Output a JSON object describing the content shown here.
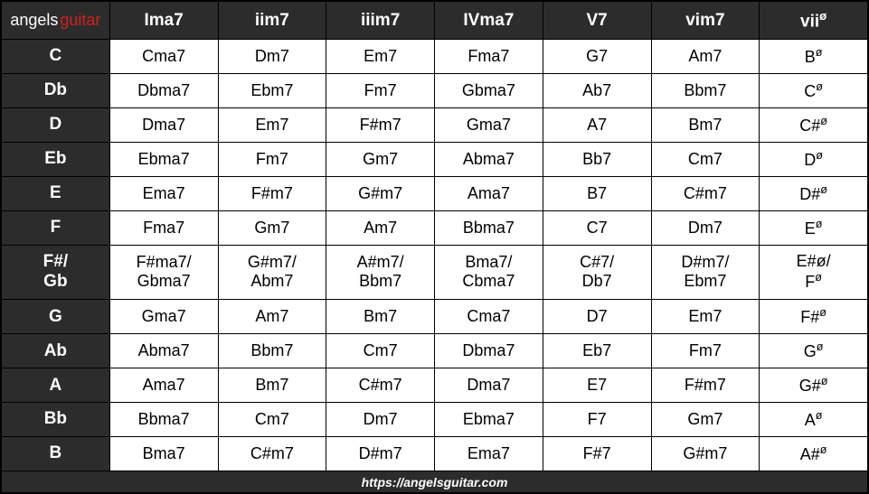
{
  "logo": {
    "part1": "angels",
    "part2": "guitar"
  },
  "colors": {
    "header_bg": "#2c2c2c",
    "header_text": "#ffffff",
    "cell_bg": "#ffffff",
    "cell_text": "#000000",
    "logo_text_1": "#ffffff",
    "logo_text_2": "#d02020",
    "border": "#000000"
  },
  "typography": {
    "header_fontsize": 19,
    "cell_fontsize": 18,
    "footer_fontsize": 14
  },
  "columns": [
    "Ima7",
    "iim7",
    "iiim7",
    "IVma7",
    "V7",
    "vim7",
    "viiø"
  ],
  "rows": [
    {
      "key": "C",
      "cells": [
        "Cma7",
        "Dm7",
        "Em7",
        "Fma7",
        "G7",
        "Am7",
        "Bø"
      ]
    },
    {
      "key": "Db",
      "cells": [
        "Dbma7",
        "Ebm7",
        "Fm7",
        "Gbma7",
        "Ab7",
        "Bbm7",
        "Cø"
      ]
    },
    {
      "key": "D",
      "cells": [
        "Dma7",
        "Em7",
        "F#m7",
        "Gma7",
        "A7",
        "Bm7",
        "C#ø"
      ]
    },
    {
      "key": "Eb",
      "cells": [
        "Ebma7",
        "Fm7",
        "Gm7",
        "Abma7",
        "Bb7",
        "Cm7",
        "Dø"
      ]
    },
    {
      "key": "E",
      "cells": [
        "Ema7",
        "F#m7",
        "G#m7",
        "Ama7",
        "B7",
        "C#m7",
        "D#ø"
      ]
    },
    {
      "key": "F",
      "cells": [
        "Fma7",
        "Gm7",
        "Am7",
        "Bbma7",
        "C7",
        "Dm7",
        "Eø"
      ]
    },
    {
      "key": "F#/\nGb",
      "cells": [
        "F#ma7/\nGbma7",
        "G#m7/\nAbm7",
        "A#m7/\nBbm7",
        "Bma7/\nCbma7",
        "C#7/\nDb7",
        "D#m7/\nEbm7",
        "E#ø/\nFø"
      ],
      "double": true
    },
    {
      "key": "G",
      "cells": [
        "Gma7",
        "Am7",
        "Bm7",
        "Cma7",
        "D7",
        "Em7",
        "F#ø"
      ]
    },
    {
      "key": "Ab",
      "cells": [
        "Abma7",
        "Bbm7",
        "Cm7",
        "Dbma7",
        "Eb7",
        "Fm7",
        "Gø"
      ]
    },
    {
      "key": "A",
      "cells": [
        "Ama7",
        "Bm7",
        "C#m7",
        "Dma7",
        "E7",
        "F#m7",
        "G#ø"
      ]
    },
    {
      "key": "Bb",
      "cells": [
        "Bbma7",
        "Cm7",
        "Dm7",
        "Ebma7",
        "F7",
        "Gm7",
        "Aø"
      ]
    },
    {
      "key": "B",
      "cells": [
        "Bma7",
        "C#m7",
        "D#m7",
        "Ema7",
        "F#7",
        "G#m7",
        "A#ø"
      ]
    }
  ],
  "footer": "https://angelsguitar.com"
}
